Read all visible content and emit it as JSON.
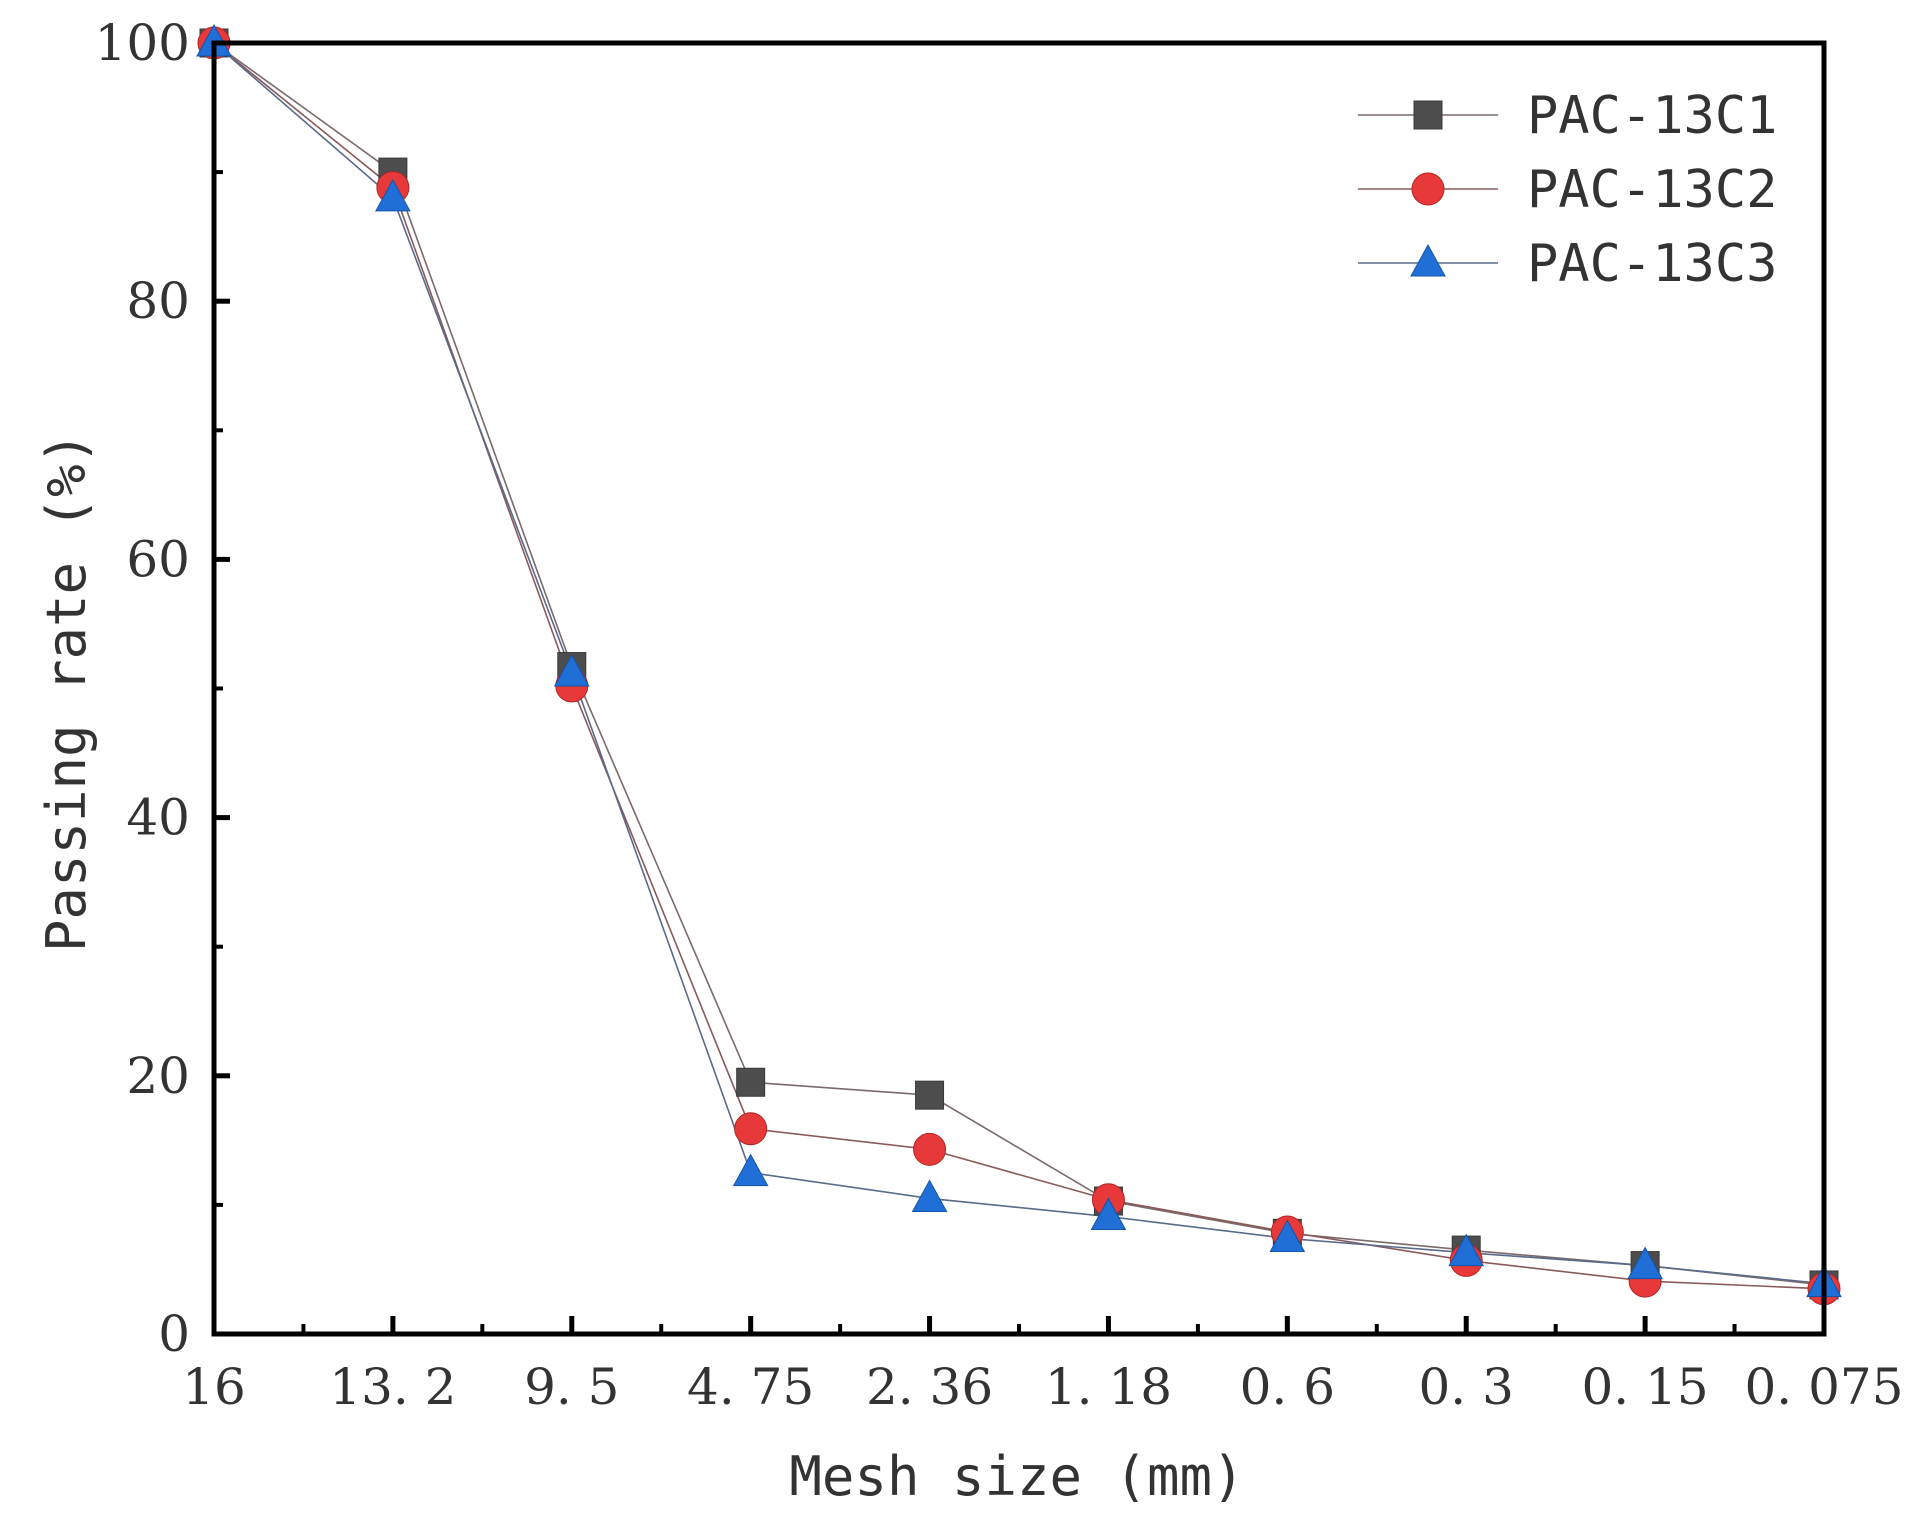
{
  "chart_data": {
    "type": "line",
    "title": "",
    "xlabel": "Mesh size (mm)",
    "ylabel": "Passing rate (%)",
    "categories": [
      "16",
      "13. 2",
      "9. 5",
      "4. 75",
      "2. 36",
      "1. 18",
      "0. 6",
      "0. 3",
      "0. 15",
      "0. 075"
    ],
    "ylim": [
      0,
      100
    ],
    "yticks": [
      "0",
      "20",
      "40",
      "60",
      "80",
      "100"
    ],
    "grid": false,
    "legend_position": "top-right",
    "series": [
      {
        "name": "PAC-13C1",
        "marker": "square",
        "color": "#4d4d4d",
        "line_color": "#7a6a6a",
        "values": [
          100,
          90.0,
          51.7,
          19.5,
          18.5,
          10.3,
          7.8,
          6.5,
          5.3,
          3.8
        ]
      },
      {
        "name": "PAC-13C2",
        "marker": "circle",
        "color": "#e8393a",
        "line_color": "#8a5a5a",
        "values": [
          100,
          88.8,
          50.2,
          15.9,
          14.3,
          10.4,
          7.9,
          5.7,
          4.1,
          3.5
        ]
      },
      {
        "name": "PAC-13C3",
        "marker": "triangle",
        "color": "#1f6fd6",
        "line_color": "#5a6a8a",
        "values": [
          100,
          88.0,
          51.2,
          12.5,
          10.5,
          9.1,
          7.4,
          6.3,
          5.3,
          3.9
        ]
      }
    ]
  }
}
